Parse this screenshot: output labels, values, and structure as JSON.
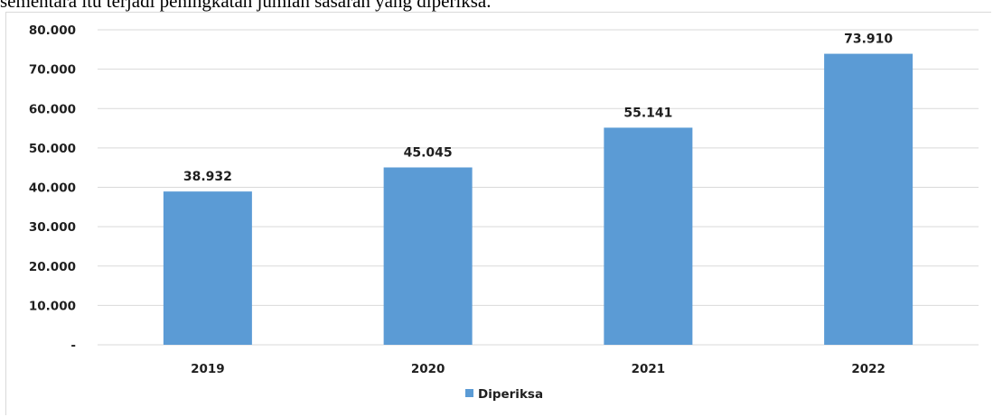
{
  "intro_text": "sementara itu terjadi peningkatan jumlah sasaran yang diperiksa.",
  "chart_data": {
    "type": "bar",
    "categories": [
      "2019",
      "2020",
      "2021",
      "2022"
    ],
    "series": [
      {
        "name": "Diperiksa",
        "values": [
          38932,
          45045,
          55141,
          73910
        ],
        "labels": [
          "38.932",
          "45.045",
          "55.141",
          "73.910"
        ],
        "color": "#5b9bd5"
      }
    ],
    "ylim": [
      0,
      80000
    ],
    "yticks": [
      0,
      10000,
      20000,
      30000,
      40000,
      50000,
      60000,
      70000,
      80000
    ],
    "ytick_labels": [
      "-",
      "10.000",
      "20.000",
      "30.000",
      "40.000",
      "50.000",
      "60.000",
      "70.000",
      "80.000"
    ],
    "grid": true,
    "legend": "bottom",
    "gridline_color": "#d9d9d9"
  }
}
